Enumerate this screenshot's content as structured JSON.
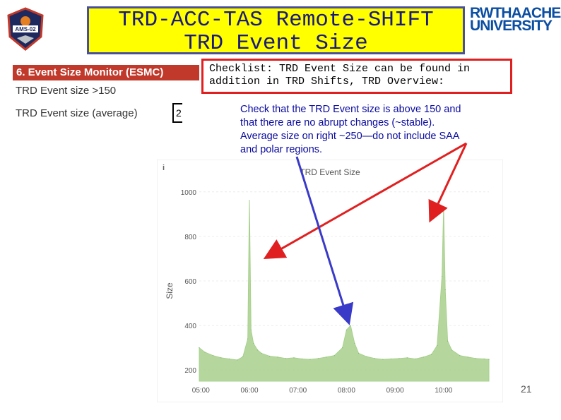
{
  "slide": {
    "title_line1": "TRD-ACC-TAS Remote-SHIFT",
    "title_line2": "TRD Event Size",
    "page_number": "21"
  },
  "logos": {
    "ams_text": "AMS-02",
    "rwth_line1": "RWTHAACHEN",
    "rwth_line2": "UNIVERSITY"
  },
  "esmc": {
    "header": "6. Event Size Monitor (ESMC)",
    "row1": "TRD Event size >150",
    "row2": "TRD Event size (average)",
    "row2_value": "2"
  },
  "checklist": {
    "text": "Checklist: TRD Event Size can be found in addition in TRD Shifts, TRD Overview:"
  },
  "note": {
    "line1": "Check that the TRD Event size is above 150 and",
    "line2": "that there are no abrupt changes (~stable).",
    "line3": "Average size on right ~250—do not include SAA",
    "line4": "and polar regions."
  },
  "chart_data": {
    "type": "area",
    "title": "TRD Event Size",
    "xlabel": "",
    "ylabel": "Size",
    "ylim": [
      150,
      1050
    ],
    "yticks": [
      200,
      400,
      600,
      800,
      1000
    ],
    "xticks": [
      "05:00",
      "06:00",
      "07:00",
      "08:00",
      "09:00",
      "10:00"
    ],
    "xlim": [
      "04:58",
      "10:56"
    ],
    "info_icon": "i",
    "series": [
      {
        "color": "#a8d08d",
        "x": [
          "04:58",
          "05:05",
          "05:15",
          "05:25",
          "05:35",
          "05:45",
          "05:52",
          "05:58",
          "06:00",
          "06:02",
          "06:05",
          "06:10",
          "06:15",
          "06:25",
          "06:35",
          "06:45",
          "06:55",
          "07:05",
          "07:15",
          "07:25",
          "07:35",
          "07:45",
          "07:55",
          "08:00",
          "08:05",
          "08:10",
          "08:15",
          "08:25",
          "08:35",
          "08:45",
          "08:55",
          "09:05",
          "09:15",
          "09:25",
          "09:35",
          "09:45",
          "09:52",
          "09:58",
          "10:00",
          "10:02",
          "10:05",
          "10:10",
          "10:20",
          "10:30",
          "10:40",
          "10:50",
          "10:56"
        ],
        "y": [
          300,
          280,
          265,
          255,
          250,
          245,
          260,
          340,
          960,
          380,
          320,
          290,
          275,
          262,
          258,
          252,
          255,
          250,
          248,
          252,
          258,
          265,
          300,
          380,
          400,
          320,
          275,
          260,
          252,
          248,
          250,
          252,
          255,
          250,
          258,
          270,
          310,
          620,
          930,
          560,
          330,
          290,
          265,
          258,
          252,
          250,
          248
        ]
      }
    ]
  },
  "annotations": {
    "arrow_color_red": "#e02020",
    "arrow_color_blue": "#3a3ac8"
  }
}
